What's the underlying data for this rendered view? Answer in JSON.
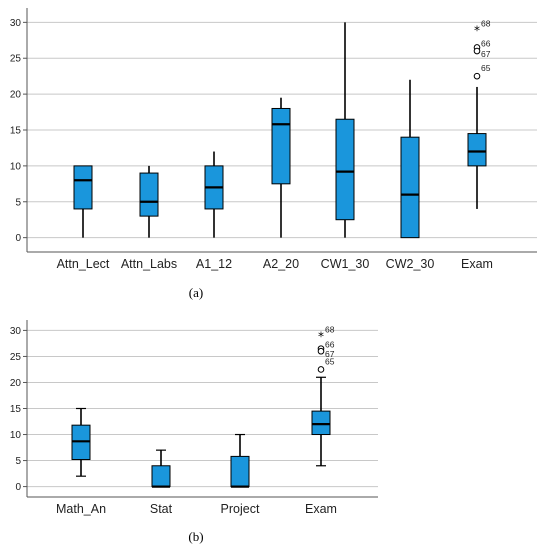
{
  "chart_data": [
    {
      "type": "box",
      "panel_label": "(a)",
      "ylim": [
        -2,
        32
      ],
      "yticks": [
        0,
        5,
        10,
        15,
        20,
        25,
        30
      ],
      "grid": true,
      "box_color": "#1a96dc",
      "categories": [
        "Attn_Lect",
        "Attn_Labs",
        "A1_12",
        "A2_20",
        "CW1_30",
        "CW2_30",
        "Exam"
      ],
      "boxes": [
        {
          "min": 0,
          "q1": 4,
          "median": 8,
          "q3": 10,
          "max": 10
        },
        {
          "min": 0,
          "q1": 3,
          "median": 5,
          "q3": 9,
          "max": 10
        },
        {
          "min": 0,
          "q1": 4,
          "median": 7,
          "q3": 10,
          "max": 12
        },
        {
          "min": 0,
          "q1": 7.5,
          "median": 15.8,
          "q3": 18,
          "max": 19.5
        },
        {
          "min": 0,
          "q1": 2.5,
          "median": 9.2,
          "q3": 16.5,
          "max": 30
        },
        {
          "min": 0,
          "q1": 0,
          "median": 6,
          "q3": 14,
          "max": 22
        },
        {
          "min": 4,
          "q1": 10,
          "median": 12,
          "q3": 14.5,
          "max": 21
        }
      ],
      "outliers": [
        {
          "category": "Exam",
          "value": 29,
          "label": "68",
          "marker": "star"
        },
        {
          "category": "Exam",
          "value": 26.5,
          "label": "66",
          "marker": "circle"
        },
        {
          "category": "Exam",
          "value": 26,
          "label": "67",
          "marker": "circle"
        },
        {
          "category": "Exam",
          "value": 22.5,
          "label": "65",
          "marker": "circle"
        }
      ]
    },
    {
      "type": "box",
      "panel_label": "(b)",
      "ylim": [
        -2,
        32
      ],
      "yticks": [
        0,
        5,
        10,
        15,
        20,
        25,
        30
      ],
      "grid": true,
      "box_color": "#1a96dc",
      "categories": [
        "Math_An",
        "Stat",
        "Project",
        "Exam"
      ],
      "boxes": [
        {
          "min": 2,
          "q1": 5.2,
          "median": 8.7,
          "q3": 11.8,
          "max": 15
        },
        {
          "min": 0,
          "q1": 0,
          "median": 0,
          "q3": 4,
          "max": 7
        },
        {
          "min": 0,
          "q1": 0,
          "median": 0,
          "q3": 5.8,
          "max": 10
        },
        {
          "min": 4,
          "q1": 10,
          "median": 12,
          "q3": 14.5,
          "max": 21
        }
      ],
      "outliers": [
        {
          "category": "Exam",
          "value": 29,
          "label": "68",
          "marker": "star"
        },
        {
          "category": "Exam",
          "value": 26.5,
          "label": "66",
          "marker": "circle"
        },
        {
          "category": "Exam",
          "value": 26,
          "label": "67",
          "marker": "circle"
        },
        {
          "category": "Exam",
          "value": 22.5,
          "label": "65",
          "marker": "circle"
        }
      ]
    }
  ]
}
